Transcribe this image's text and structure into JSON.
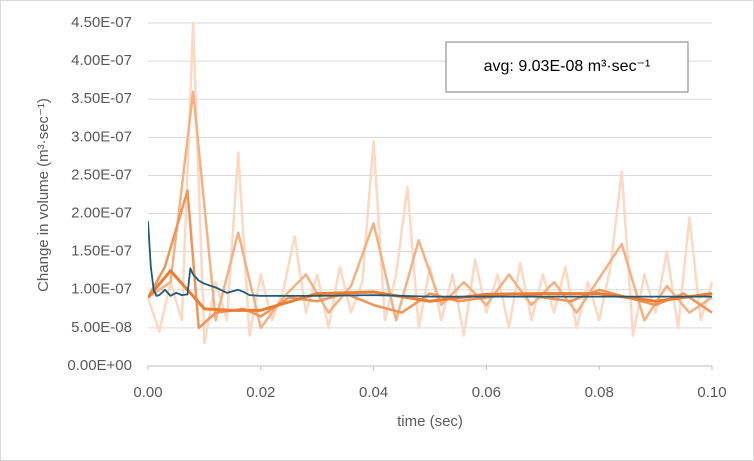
{
  "chart_data": {
    "type": "line",
    "x_label": "time (sec)",
    "y_label": "Change in volume (m³·sec⁻¹)",
    "annotation": "avg: 9.03E-08 m³·sec⁻¹",
    "xlim": [
      0,
      0.1
    ],
    "xticks": [
      {
        "value": 0,
        "label": "0.00"
      },
      0.02,
      0.04,
      0.06,
      0.08,
      {
        "value": 0.1,
        "label": "0.10"
      }
    ],
    "ylim": [
      0,
      4.5e-07
    ],
    "yticks": [
      {
        "value": 0,
        "label": "0.00E+00"
      },
      {
        "value": 5e-08,
        "label": "5.00E-08"
      },
      {
        "value": 1e-07,
        "label": "1.00E-07"
      },
      {
        "value": 1.5e-07,
        "label": "1.50E-07"
      },
      {
        "value": 2e-07,
        "label": "2.00E-07"
      },
      {
        "value": 2.5e-07,
        "label": "2.50E-07"
      },
      {
        "value": 3e-07,
        "label": "3.00E-07"
      },
      {
        "value": 3.5e-07,
        "label": "3.50E-07"
      },
      {
        "value": 4e-07,
        "label": "4.00E-07"
      },
      {
        "value": 4.5e-07,
        "label": "4.50E-07"
      }
    ],
    "grid": true,
    "series": [
      {
        "color": "#fbd9c3",
        "x": [
          0,
          0.002,
          0.004,
          0.006,
          0.008,
          0.01,
          0.012,
          0.014,
          0.016,
          0.018,
          0.02,
          0.022,
          0.024,
          0.026,
          0.028,
          0.03,
          0.032,
          0.034,
          0.036,
          0.038,
          0.04,
          0.042,
          0.044,
          0.046,
          0.048,
          0.05,
          0.052,
          0.054,
          0.056,
          0.058,
          0.06,
          0.062,
          0.064,
          0.066,
          0.068,
          0.07,
          0.072,
          0.074,
          0.076,
          0.078,
          0.08,
          0.082,
          0.084,
          0.086,
          0.088,
          0.09,
          0.092,
          0.094,
          0.096,
          0.098,
          0.1
        ],
        "values": [
          9e-08,
          4.5e-08,
          1.1e-07,
          6e-08,
          4.5e-07,
          3e-08,
          1.1e-07,
          6e-08,
          2.8e-07,
          4e-08,
          1.2e-07,
          6e-08,
          1e-07,
          1.7e-07,
          7e-08,
          1.2e-07,
          5e-08,
          1.3e-07,
          7e-08,
          1.1e-07,
          2.95e-07,
          6e-08,
          1.2e-07,
          2.35e-07,
          5e-08,
          1.3e-07,
          6e-08,
          1.2e-07,
          4e-08,
          1.4e-07,
          7e-08,
          1.2e-07,
          5e-08,
          1.35e-07,
          6e-08,
          1.2e-07,
          7e-08,
          1.3e-07,
          5e-08,
          1.1e-07,
          6e-08,
          1.3e-07,
          2.55e-07,
          4e-08,
          1.2e-07,
          7e-08,
          1.5e-07,
          5e-08,
          1.95e-07,
          6e-08,
          1.1e-07
        ]
      },
      {
        "color": "#f4b183",
        "x": [
          0,
          0.004,
          0.008,
          0.012,
          0.016,
          0.02,
          0.024,
          0.028,
          0.032,
          0.036,
          0.04,
          0.044,
          0.048,
          0.052,
          0.056,
          0.06,
          0.064,
          0.068,
          0.072,
          0.076,
          0.08,
          0.084,
          0.088,
          0.092,
          0.096,
          0.1
        ],
        "values": [
          9e-08,
          1.1e-07,
          3.6e-07,
          6e-08,
          1.75e-07,
          5e-08,
          9e-08,
          1.2e-07,
          7e-08,
          1.05e-07,
          1.87e-07,
          6e-08,
          1.65e-07,
          8e-08,
          1.1e-07,
          8e-08,
          1.2e-07,
          8e-08,
          1.1e-07,
          7e-08,
          1.15e-07,
          1.6e-07,
          6e-08,
          1.05e-07,
          7e-08,
          9e-08
        ]
      },
      {
        "color": "#f0955a",
        "x": [
          0,
          0.003,
          0.007,
          0.009,
          0.012,
          0.017,
          0.02,
          0.025,
          0.03,
          0.035,
          0.04,
          0.045,
          0.05,
          0.055,
          0.06,
          0.065,
          0.07,
          0.075,
          0.08,
          0.085,
          0.09,
          0.095,
          0.1
        ],
        "values": [
          9e-08,
          1.3e-07,
          2.3e-07,
          5e-08,
          7e-08,
          7.5e-08,
          6.5e-08,
          9e-08,
          8.5e-08,
          9.5e-08,
          8e-08,
          7e-08,
          9.5e-08,
          8.5e-08,
          9e-08,
          9.5e-08,
          9e-08,
          8.5e-08,
          1e-07,
          9e-08,
          8e-08,
          9.5e-08,
          7e-08
        ]
      },
      {
        "color": "#ed7d31",
        "x": [
          0,
          0.004,
          0.007,
          0.01,
          0.015,
          0.02,
          0.03,
          0.04,
          0.05,
          0.06,
          0.07,
          0.08,
          0.09,
          0.1
        ],
        "values": [
          9e-08,
          1.25e-07,
          1e-07,
          7.5e-08,
          7.3e-08,
          7.3e-08,
          9.5e-08,
          9.7e-08,
          8.5e-08,
          9.4e-08,
          9.5e-08,
          9.5e-08,
          8.5e-08,
          9.5e-08
        ]
      },
      {
        "color": "#1f5878",
        "x": [
          0,
          0.0005,
          0.001,
          0.0015,
          0.002,
          0.003,
          0.004,
          0.005,
          0.006,
          0.007,
          0.0075,
          0.008,
          0.009,
          0.01,
          0.012,
          0.014,
          0.016,
          0.017,
          0.018,
          0.02,
          0.03,
          0.04,
          0.05,
          0.06,
          0.07,
          0.08,
          0.09,
          0.1
        ],
        "values": [
          1.9e-07,
          1.3e-07,
          1e-07,
          9.2e-08,
          9.3e-08,
          1e-07,
          9.2e-08,
          9.6e-08,
          9.3e-08,
          9.4e-08,
          1.28e-07,
          1.2e-07,
          1.12e-07,
          1.08e-07,
          1.03e-07,
          9.6e-08,
          1e-07,
          9.7e-08,
          9.3e-08,
          9.2e-08,
          9.2e-08,
          9.3e-08,
          9.1e-08,
          9.1e-08,
          9.1e-08,
          9.1e-08,
          9.1e-08,
          9.1e-08
        ]
      }
    ]
  }
}
